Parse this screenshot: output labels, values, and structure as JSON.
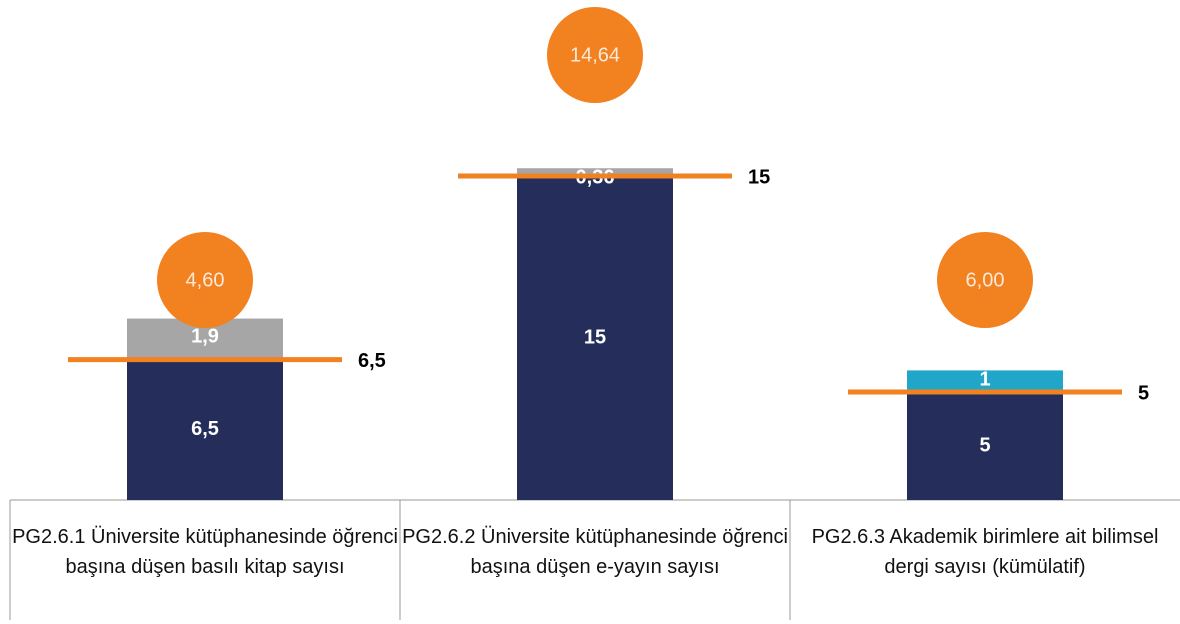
{
  "chart_data": {
    "type": "stacked-bar-target",
    "categories": [
      "PG2.6.1 Üniversite kütüphanesinde öğrenci başına düşen basılı kitap sayısı",
      "PG2.6.2 Üniversite kütüphanesinde öğrenci başına düşen e-yayın sayısı",
      "PG2.6.3 Akademik birimlere ait bilimsel dergi sayısı (kümülatif)"
    ],
    "series": [
      {
        "color": "#252e5a",
        "values": [
          6.5,
          15,
          5
        ],
        "value_labels": [
          "6,5",
          "15",
          "5"
        ]
      },
      {
        "colors": [
          "#a6a6a6",
          "#a6a6a6",
          "#1fa6c9"
        ],
        "values": [
          1.9,
          0.36,
          1
        ],
        "value_labels": [
          "1,9",
          "0,36",
          "1"
        ]
      }
    ],
    "targets": {
      "color": "#f28120",
      "values": [
        6.5,
        15,
        5
      ],
      "value_labels": [
        "6,5",
        "15",
        "5"
      ]
    },
    "circles": {
      "color": "#f28120",
      "values": [
        4.6,
        14.64,
        6
      ],
      "value_labels": [
        "4,60",
        "14,64",
        "6,00"
      ]
    }
  }
}
